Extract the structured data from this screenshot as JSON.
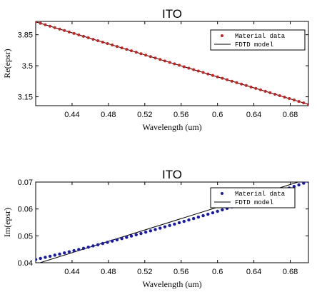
{
  "chart_data": [
    {
      "type": "line",
      "title": "ITO",
      "xlabel": "Wavelength (um)",
      "ylabel": "Re(epsr)",
      "xlim": [
        0.4,
        0.7
      ],
      "ylim": [
        3.05,
        4.0
      ],
      "xticks": [
        "0.44",
        "0.48",
        "0.52",
        "0.56",
        "0.6",
        "0.64",
        "0.68"
      ],
      "xtick_values": [
        0.44,
        0.48,
        0.52,
        0.56,
        0.6,
        0.64,
        0.68
      ],
      "yticks": [
        "3.15",
        "3.5",
        "3.85"
      ],
      "ytick_values": [
        3.15,
        3.5,
        3.85
      ],
      "legend_position": "top-right",
      "series": [
        {
          "name": "Material data",
          "kind": "points",
          "color": "#cc1f1f",
          "x_start": 0.4,
          "x_end": 0.7,
          "count": 58,
          "y_start": 3.995,
          "y_end": 3.065
        },
        {
          "name": "FDTD model",
          "kind": "line",
          "color": "#000000",
          "x": [
            0.4,
            0.7
          ],
          "y": [
            3.995,
            3.065
          ]
        }
      ]
    },
    {
      "type": "line",
      "title": "ITO",
      "xlabel": "Wavelength (um)",
      "ylabel": "Im(epsr)",
      "xlim": [
        0.4,
        0.7
      ],
      "ylim": [
        0.04,
        0.07
      ],
      "xticks": [
        "0.44",
        "0.48",
        "0.52",
        "0.56",
        "0.6",
        "0.64",
        "0.68"
      ],
      "xtick_values": [
        0.44,
        0.48,
        0.52,
        0.56,
        0.6,
        0.64,
        0.68
      ],
      "yticks": [
        "0.04",
        "0.05",
        "0.06",
        "0.07"
      ],
      "ytick_values": [
        0.04,
        0.05,
        0.06,
        0.07
      ],
      "legend_position": "top-right",
      "series": [
        {
          "name": "Material data",
          "kind": "points",
          "color": "#1a1aa8",
          "x_start": 0.4,
          "x_end": 0.7,
          "count": 58,
          "y_start": 0.0412,
          "y_end": 0.0702,
          "curvature": 0.22
        },
        {
          "name": "FDTD model",
          "kind": "line",
          "color": "#000000",
          "x": [
            0.4,
            0.7
          ],
          "y": [
            0.0395,
            0.0712
          ]
        }
      ]
    }
  ]
}
